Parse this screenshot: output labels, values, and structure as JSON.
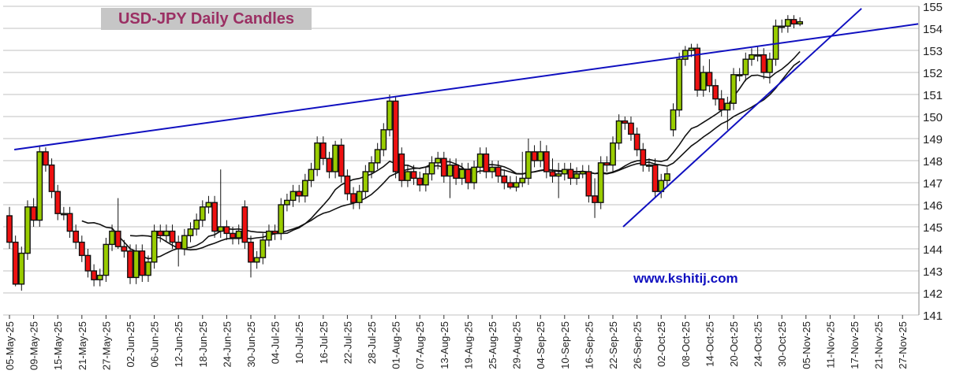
{
  "chart_data": {
    "type": "candlestick",
    "title": "USD-JPY Daily Candles",
    "watermark": "www.kshitij.com",
    "ylim": [
      141,
      155
    ],
    "yticks": [
      141,
      142,
      143,
      144,
      145,
      146,
      147,
      148,
      149,
      150,
      151,
      152,
      153,
      154,
      155
    ],
    "y_axis_side": "right",
    "grid": "horizontal",
    "x_tick_every_n_candles": 4,
    "xticks": [
      "05-May-25",
      "09-May-25",
      "15-May-25",
      "21-May-25",
      "27-May-25",
      "02-Jun-25",
      "06-Jun-25",
      "12-Jun-25",
      "18-Jun-25",
      "24-Jun-25",
      "30-Jun-25",
      "04-Jul-25",
      "10-Jul-25",
      "16-Jul-25",
      "22-Jul-25",
      "28-Jul-25",
      "01-Aug-25",
      "07-Aug-25",
      "13-Aug-25",
      "19-Aug-25",
      "25-Aug-25",
      "29-Aug-25",
      "04-Sep-25",
      "10-Sep-25",
      "16-Sep-25",
      "22-Sep-25",
      "26-Sep-25",
      "02-Oct-25",
      "08-Oct-25",
      "14-Oct-25",
      "20-Oct-25",
      "24-Oct-25",
      "30-Oct-25",
      "05-Nov-25",
      "11-Nov-25",
      "17-Nov-25",
      "21-Nov-25",
      "27-Nov-25"
    ],
    "colors": {
      "up": "#99cc00",
      "down": "#ee1111",
      "outline": "#111111",
      "trendline": "#1010c0",
      "moving_average": "#111111",
      "grid": "#c0c0c0",
      "title_text": "#9b2f63",
      "title_bg": "#c6c6c6"
    },
    "ohlc_fields": [
      "open",
      "high",
      "low",
      "close"
    ],
    "candles": [
      [
        145.5,
        145.9,
        144.0,
        144.3
      ],
      [
        144.3,
        144.6,
        142.3,
        142.4
      ],
      [
        142.4,
        144.1,
        142.1,
        143.8
      ],
      [
        143.8,
        146.2,
        143.5,
        145.9
      ],
      [
        145.9,
        146.3,
        145.0,
        145.3
      ],
      [
        145.3,
        148.7,
        145.0,
        148.4
      ],
      [
        148.4,
        148.6,
        147.5,
        147.8
      ],
      [
        147.8,
        148.1,
        146.3,
        146.6
      ],
      [
        146.6,
        146.9,
        145.3,
        145.6
      ],
      [
        145.6,
        145.9,
        145.3,
        145.6
      ],
      [
        145.6,
        145.9,
        144.5,
        144.8
      ],
      [
        144.8,
        145.1,
        144.0,
        144.3
      ],
      [
        144.3,
        144.6,
        143.4,
        143.7
      ],
      [
        143.7,
        144.0,
        142.7,
        143.0
      ],
      [
        143.0,
        143.3,
        142.3,
        142.6
      ],
      [
        142.6,
        143.1,
        142.3,
        142.8
      ],
      [
        142.8,
        144.5,
        142.5,
        144.2
      ],
      [
        144.2,
        145.1,
        143.9,
        144.8
      ],
      [
        144.8,
        146.3,
        144.0,
        144.1
      ],
      [
        144.1,
        144.4,
        143.6,
        143.9
      ],
      [
        143.9,
        144.2,
        142.4,
        142.7
      ],
      [
        142.7,
        144.2,
        142.4,
        143.9
      ],
      [
        143.9,
        144.2,
        142.5,
        142.8
      ],
      [
        142.8,
        143.7,
        142.5,
        143.4
      ],
      [
        143.4,
        145.1,
        143.1,
        144.8
      ],
      [
        144.8,
        145.1,
        144.3,
        144.6
      ],
      [
        144.6,
        145.1,
        144.3,
        144.8
      ],
      [
        144.8,
        145.1,
        144.0,
        144.3
      ],
      [
        144.3,
        144.6,
        143.2,
        144.0
      ],
      [
        144.0,
        144.9,
        143.7,
        144.6
      ],
      [
        144.6,
        145.2,
        144.3,
        144.9
      ],
      [
        144.9,
        145.6,
        144.6,
        145.3
      ],
      [
        145.3,
        146.2,
        145.0,
        145.9
      ],
      [
        145.9,
        146.4,
        145.6,
        146.1
      ],
      [
        146.1,
        146.4,
        144.5,
        144.8
      ],
      [
        144.8,
        147.6,
        144.5,
        145.0
      ],
      [
        145.0,
        145.3,
        144.4,
        144.7
      ],
      [
        144.7,
        145.0,
        144.2,
        144.5
      ],
      [
        144.5,
        145.1,
        144.2,
        144.8
      ],
      [
        145.9,
        146.2,
        144.0,
        144.3
      ],
      [
        144.3,
        144.6,
        142.7,
        143.4
      ],
      [
        143.4,
        143.9,
        143.1,
        143.6
      ],
      [
        143.6,
        144.7,
        143.3,
        144.4
      ],
      [
        144.4,
        145.1,
        144.1,
        144.8
      ],
      [
        144.8,
        145.1,
        144.4,
        144.7
      ],
      [
        144.7,
        146.3,
        144.4,
        146.0
      ],
      [
        146.0,
        146.5,
        145.7,
        146.2
      ],
      [
        146.2,
        146.9,
        145.9,
        146.6
      ],
      [
        146.6,
        146.9,
        146.1,
        146.4
      ],
      [
        146.4,
        147.4,
        146.1,
        147.1
      ],
      [
        147.1,
        147.9,
        146.8,
        147.6
      ],
      [
        147.6,
        149.1,
        147.3,
        148.8
      ],
      [
        148.8,
        149.1,
        147.8,
        148.1
      ],
      [
        148.1,
        148.4,
        147.2,
        147.5
      ],
      [
        147.5,
        148.9,
        147.2,
        148.7
      ],
      [
        148.7,
        149.0,
        147.0,
        147.3
      ],
      [
        147.3,
        147.6,
        146.2,
        146.5
      ],
      [
        146.5,
        146.8,
        145.8,
        146.1
      ],
      [
        146.1,
        146.9,
        145.8,
        146.6
      ],
      [
        146.6,
        147.8,
        146.3,
        147.5
      ],
      [
        147.5,
        148.2,
        147.2,
        147.9
      ],
      [
        147.9,
        148.8,
        147.6,
        148.5
      ],
      [
        148.5,
        149.7,
        148.2,
        149.4
      ],
      [
        149.4,
        151.0,
        149.1,
        150.7
      ],
      [
        150.7,
        150.9,
        147.2,
        147.5
      ],
      [
        148.3,
        148.6,
        146.8,
        147.1
      ],
      [
        147.1,
        147.8,
        146.8,
        147.5
      ],
      [
        147.5,
        147.8,
        146.9,
        147.2
      ],
      [
        147.2,
        147.5,
        146.6,
        146.9
      ],
      [
        146.9,
        147.7,
        146.6,
        147.4
      ],
      [
        147.4,
        148.2,
        147.1,
        147.9
      ],
      [
        147.9,
        148.4,
        147.6,
        148.1
      ],
      [
        148.1,
        148.4,
        147.0,
        147.3
      ],
      [
        147.3,
        148.1,
        146.3,
        147.8
      ],
      [
        147.8,
        148.1,
        146.9,
        147.2
      ],
      [
        147.2,
        147.9,
        146.9,
        147.6
      ],
      [
        147.6,
        147.9,
        146.7,
        147.0
      ],
      [
        147.0,
        148.0,
        146.7,
        147.7
      ],
      [
        147.7,
        148.6,
        147.4,
        148.3
      ],
      [
        148.3,
        148.6,
        147.2,
        147.5
      ],
      [
        147.5,
        148.0,
        147.2,
        147.7
      ],
      [
        147.7,
        148.0,
        147.0,
        147.3
      ],
      [
        147.3,
        147.6,
        146.7,
        147.0
      ],
      [
        147.0,
        147.3,
        146.7,
        146.8
      ],
      [
        146.8,
        147.3,
        146.6,
        147.0
      ],
      [
        147.0,
        148.4,
        146.8,
        147.2
      ],
      [
        147.2,
        149.0,
        146.9,
        148.4
      ],
      [
        148.4,
        148.7,
        147.7,
        148.0
      ],
      [
        148.0,
        148.9,
        147.7,
        148.4
      ],
      [
        148.4,
        148.7,
        147.2,
        147.5
      ],
      [
        147.5,
        148.1,
        147.0,
        147.3
      ],
      [
        147.3,
        147.9,
        146.3,
        147.4
      ],
      [
        147.4,
        147.9,
        147.1,
        147.6
      ],
      [
        147.6,
        147.9,
        146.9,
        147.2
      ],
      [
        147.2,
        147.7,
        146.9,
        147.4
      ],
      [
        147.4,
        147.8,
        147.2,
        147.5
      ],
      [
        147.5,
        147.8,
        146.1,
        146.4
      ],
      [
        146.4,
        147.2,
        145.4,
        146.1
      ],
      [
        146.1,
        148.2,
        145.8,
        147.9
      ],
      [
        147.9,
        148.2,
        147.5,
        147.8
      ],
      [
        147.8,
        149.1,
        147.5,
        148.8
      ],
      [
        148.8,
        150.1,
        148.5,
        149.8
      ],
      [
        149.8,
        150.0,
        149.4,
        149.7
      ],
      [
        149.7,
        150.0,
        148.9,
        149.2
      ],
      [
        149.2,
        149.5,
        148.2,
        148.5
      ],
      [
        148.5,
        148.8,
        147.5,
        147.8
      ],
      [
        147.8,
        148.1,
        147.5,
        147.8
      ],
      [
        147.8,
        148.1,
        146.3,
        146.6
      ],
      [
        146.6,
        147.4,
        146.3,
        147.1
      ],
      [
        147.1,
        147.7,
        146.8,
        147.4
      ],
      [
        149.4,
        150.6,
        149.1,
        150.3
      ],
      [
        150.3,
        152.9,
        150.0,
        152.6
      ],
      [
        152.6,
        153.2,
        152.3,
        153.0
      ],
      [
        153.0,
        153.3,
        152.7,
        153.1
      ],
      [
        153.1,
        153.3,
        150.9,
        151.2
      ],
      [
        151.2,
        152.3,
        150.9,
        152.0
      ],
      [
        152.0,
        152.6,
        151.1,
        151.4
      ],
      [
        151.4,
        151.7,
        150.5,
        150.8
      ],
      [
        150.8,
        151.2,
        150.0,
        150.3
      ],
      [
        150.3,
        150.9,
        149.4,
        150.6
      ],
      [
        150.6,
        152.2,
        150.3,
        151.9
      ],
      [
        151.9,
        152.2,
        151.6,
        151.9
      ],
      [
        151.9,
        152.9,
        151.6,
        152.6
      ],
      [
        152.6,
        153.1,
        152.3,
        152.8
      ],
      [
        152.8,
        153.2,
        152.5,
        152.8
      ],
      [
        152.8,
        153.1,
        151.7,
        152.0
      ],
      [
        152.0,
        152.9,
        151.5,
        152.6
      ],
      [
        152.6,
        154.4,
        152.3,
        154.1
      ],
      [
        154.1,
        154.4,
        153.8,
        154.1
      ],
      [
        154.1,
        154.6,
        153.8,
        154.4
      ],
      [
        154.4,
        154.6,
        154.0,
        154.2
      ],
      [
        154.2,
        154.5,
        154.1,
        154.3
      ]
    ],
    "moving_average_periods": [
      13,
      21
    ],
    "trendlines": [
      {
        "from": {
          "candle": 0.8,
          "price": 148.5
        },
        "to": {
          "candle": 150.6,
          "price": 154.2
        }
      },
      {
        "from": {
          "candle": 101.7,
          "price": 145.0
        },
        "to": {
          "candle": 141.2,
          "price": 154.9
        }
      }
    ]
  }
}
